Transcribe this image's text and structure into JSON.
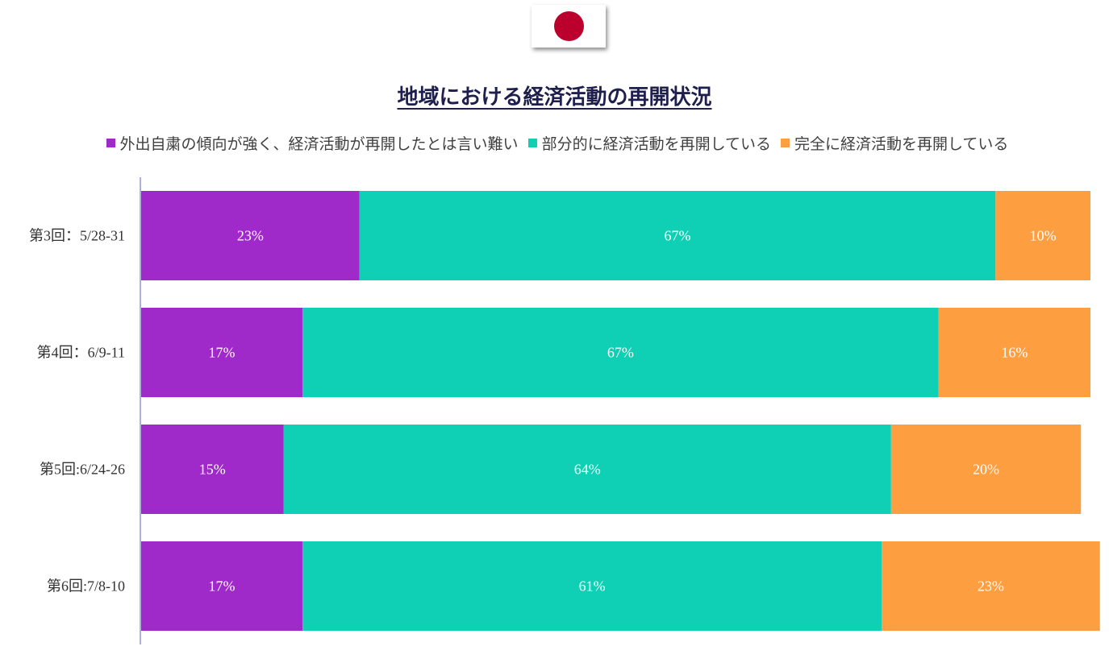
{
  "flag": {
    "icon": "japan-flag-icon",
    "disc_color": "#bc002d"
  },
  "chart_data": {
    "type": "bar",
    "orientation": "horizontal",
    "stacked": "100%",
    "title": "地域における経済活動の再開状況",
    "categories": [
      "第3回：5/28-31",
      "第4回：6/9-11",
      "第5回:6/24-26",
      "第6回:7/8-10"
    ],
    "series": [
      {
        "name": "外出自粛の傾向が強く、経済活動が再開したとは言い難い",
        "color": "#a02ac9",
        "values": [
          23,
          17,
          15,
          17
        ],
        "labels": [
          "23%",
          "17%",
          "15%",
          "17%"
        ]
      },
      {
        "name": "部分的に経済活動を再開している",
        "color": "#0fcfb4",
        "values": [
          67,
          67,
          64,
          61
        ],
        "labels": [
          "67%",
          "67%",
          "64%",
          "61%"
        ]
      },
      {
        "name": "完全に経済活動を再開している",
        "color": "#fd9e41",
        "values": [
          10,
          16,
          20,
          23
        ],
        "labels": [
          "10%",
          "16%",
          "20%",
          "23%"
        ]
      }
    ],
    "xlim": [
      0,
      100
    ],
    "legend_position": "top",
    "grid": false
  }
}
